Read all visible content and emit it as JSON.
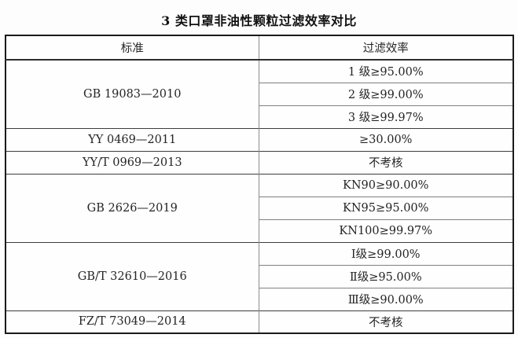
{
  "title": "3 类口罩非油性颗粒过滤效率对比",
  "table": {
    "headers": {
      "standard": "标准",
      "efficiency": "过滤效率"
    },
    "groups": [
      {
        "standard": "GB 19083—2010",
        "values": [
          "1 级≥95.00%",
          "2 级≥99.00%",
          "3 级≥99.97%"
        ]
      },
      {
        "standard": "YY 0469—2011",
        "values": [
          "≥30.00%"
        ]
      },
      {
        "standard": "YY/T 0969—2013",
        "values": [
          "不考核"
        ]
      },
      {
        "standard": "GB 2626—2019",
        "values": [
          "KN90≥90.00%",
          "KN95≥95.00%",
          "KN100≥99.97%"
        ]
      },
      {
        "standard": "GB/T 32610—2016",
        "values": [
          "Ⅰ级≥99.00%",
          "Ⅱ级≥95.00%",
          "Ⅲ级≥90.00%"
        ]
      },
      {
        "standard": "FZ/T 73049—2014",
        "values": [
          "不考核"
        ]
      }
    ]
  },
  "colors": {
    "outer_border": "#1a1a1a",
    "group_separator": "#3c3c3c",
    "sub_row_separator": "#808080",
    "column_divider": "#8c8c8c",
    "text": "#242424",
    "background": "#fdfdfd"
  }
}
